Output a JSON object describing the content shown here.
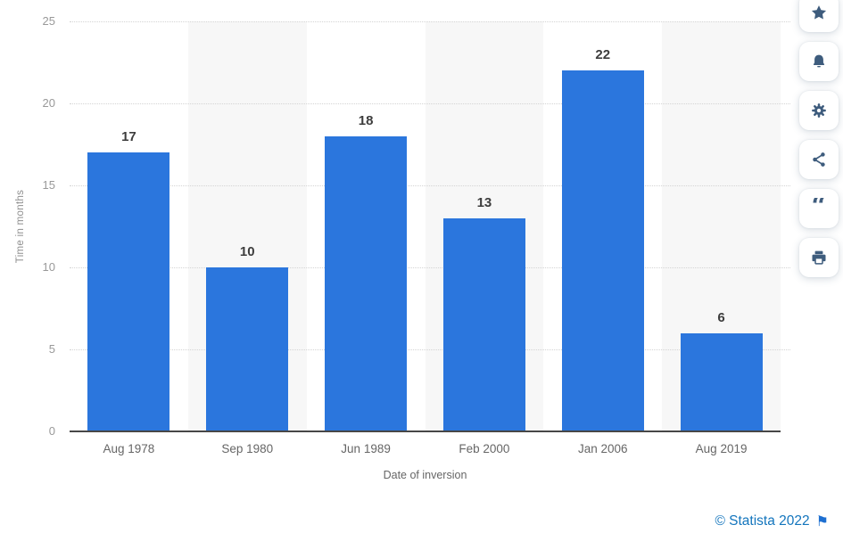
{
  "chart_data": {
    "type": "bar",
    "title": "",
    "categories": [
      "Aug 1978",
      "Sep 1980",
      "Jun 1989",
      "Feb 2000",
      "Jan 2006",
      "Aug 2019"
    ],
    "values": [
      17,
      10,
      18,
      13,
      22,
      6
    ],
    "xlabel": "Date of inversion",
    "ylabel": "Time in months",
    "ylim": [
      0,
      25
    ],
    "yticks": [
      0,
      5,
      10,
      15,
      20,
      25
    ],
    "grid": "horizontal-dotted",
    "legend": "none",
    "bar_color": "#2b76dd",
    "band_color": "#f7f7f7"
  },
  "toolbar": {
    "icon_color": "#3e5c7d",
    "items": [
      {
        "name": "favorite",
        "icon": "star-icon"
      },
      {
        "name": "alerts",
        "icon": "bell-icon"
      },
      {
        "name": "settings",
        "icon": "gear-icon"
      },
      {
        "name": "share",
        "icon": "share-icon"
      },
      {
        "name": "cite",
        "icon": "quote-icon"
      },
      {
        "name": "print",
        "icon": "printer-icon"
      }
    ]
  },
  "footer": {
    "credit_text": "© Statista 2022",
    "link_color": "#1375bd"
  }
}
